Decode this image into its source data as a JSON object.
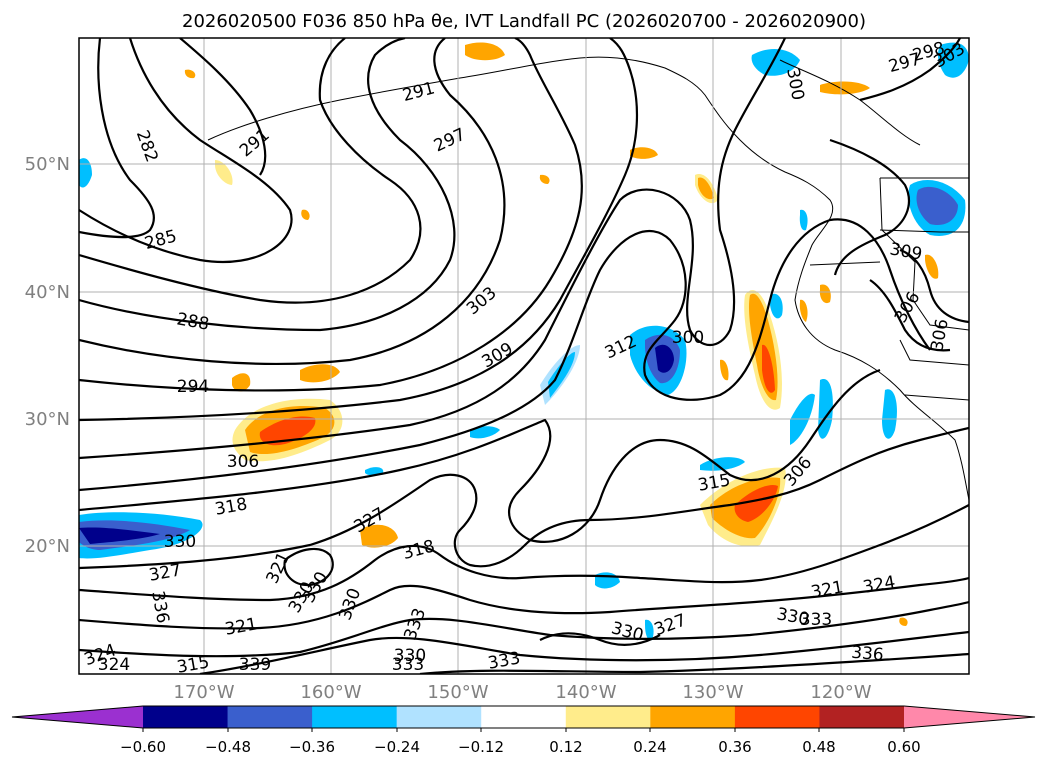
{
  "title": "2026020500 F036 850 hPa θe, IVT Landfall PC (2026020700 - 2026020900)",
  "lat_ticks": [
    "50°N",
    "40°N",
    "30°N",
    "20°N"
  ],
  "lon_ticks": [
    "170°W",
    "160°W",
    "150°W",
    "140°W",
    "130°W",
    "120°W"
  ],
  "colorbar": {
    "tick_labels": [
      "−0.60",
      "−0.48",
      "−0.36",
      "−0.24",
      "−0.12",
      "0.12",
      "0.24",
      "0.36",
      "0.48",
      "0.60"
    ],
    "colors": [
      "#9b30d0",
      "#00008b",
      "#3a5fcd",
      "#00bfff",
      "#b0e2ff",
      "#ffffff",
      "#ffec8b",
      "#ffa500",
      "#ff4500",
      "#b22222",
      "#ff88aa"
    ]
  },
  "contour_labels": [
    "291",
    "291",
    "282",
    "297",
    "285",
    "288",
    "294",
    "303",
    "309",
    "312",
    "300",
    "306",
    "318",
    "330",
    "327",
    "321",
    "327",
    "318",
    "315",
    "306",
    "309",
    "306",
    "306",
    "297",
    "300",
    "321",
    "324",
    "330",
    "333",
    "336",
    "327",
    "330",
    "333",
    "333",
    "330",
    "333",
    "330",
    "324",
    "324",
    "315",
    "339",
    "330",
    "336",
    "321",
    "330",
    "303",
    "298"
  ]
}
